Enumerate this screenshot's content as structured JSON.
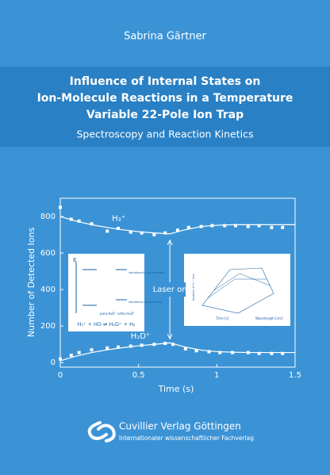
{
  "author": "Sabrina Gärtner",
  "title": [
    "Influence of Internal States on",
    "Ion-Molecule Reactions in a Temperature",
    "Variable 22-Pole Ion Trap"
  ],
  "subtitle": "Spectroscopy and Reaction Kinetics",
  "chart_data": {
    "type": "scatter",
    "xlabel": "Time (s)",
    "ylabel": "Number of Detected Ions",
    "xlim": [
      0,
      1.5
    ],
    "ylim": [
      -25,
      900
    ],
    "xticks": [
      0,
      0.5,
      1,
      1.5
    ],
    "yticks": [
      0,
      200,
      400,
      600,
      800
    ],
    "annotation": "Laser on",
    "annotation_x": 0.7,
    "fit_x": [
      0,
      0.1,
      0.2,
      0.3,
      0.4,
      0.5,
      0.6,
      0.7,
      0.8,
      0.9,
      1.0,
      1.1,
      1.2,
      1.3,
      1.4,
      1.5
    ],
    "series": [
      {
        "name": "H₃⁺",
        "color": "#ffffff",
        "x": [
          0,
          0.07,
          0.12,
          0.2,
          0.3,
          0.37,
          0.45,
          0.52,
          0.6,
          0.67,
          0.75,
          0.82,
          0.9,
          0.97,
          1.05,
          1.12,
          1.2,
          1.27,
          1.35,
          1.42
        ],
        "values": [
          850,
          785,
          775,
          760,
          720,
          735,
          715,
          710,
          700,
          710,
          725,
          740,
          745,
          750,
          750,
          750,
          745,
          750,
          740,
          740
        ],
        "fit": [
          800,
          775,
          755,
          740,
          727,
          717,
          710,
          705,
          728,
          745,
          752,
          755,
          755,
          755,
          755,
          755
        ]
      },
      {
        "name": "H₂D⁺",
        "color": "#ffffff",
        "x": [
          0,
          0.07,
          0.12,
          0.2,
          0.3,
          0.37,
          0.45,
          0.52,
          0.6,
          0.67,
          0.72,
          0.8,
          0.87,
          0.95,
          1.02,
          1.1,
          1.2,
          1.27,
          1.35,
          1.42
        ],
        "values": [
          20,
          40,
          55,
          70,
          80,
          85,
          90,
          95,
          100,
          105,
          100,
          75,
          65,
          60,
          55,
          55,
          55,
          50,
          50,
          50
        ],
        "fit": [
          10,
          35,
          55,
          70,
          82,
          92,
          100,
          108,
          85,
          68,
          60,
          57,
          55,
          55,
          55,
          55
        ]
      }
    ],
    "inset_left": {
      "axis": "E",
      "reaction": "H₃⁺ + HD ⇌ H₂D⁺ + H₂",
      "excited": "vibrationally excited state",
      "ground": "vibrational ground state",
      "para": "para-H₂D⁺",
      "ortho": "ortho-H₂D⁺"
    },
    "inset_right": {
      "zlabel": "Number of H₃⁺ Ions",
      "xlabel": "Time [s]",
      "ylabel": "Wavelength [nm]"
    }
  },
  "publisher": {
    "name": "Cuvillier Verlag Göttingen",
    "tagline": "Internationaler wissenschaftlicher Fachverlag"
  }
}
